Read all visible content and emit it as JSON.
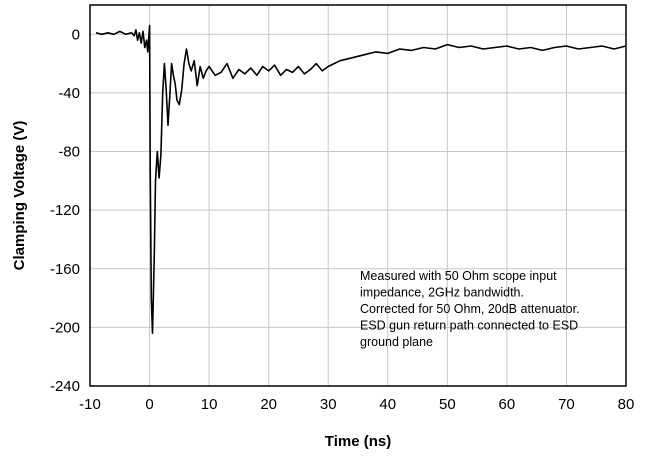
{
  "chart_data": {
    "type": "line",
    "xlabel": "Time (ns)",
    "ylabel": "Clamping Voltage (V)",
    "xlim": [
      -10,
      80
    ],
    "ylim": [
      -240,
      20
    ],
    "xticks": [
      -10,
      0,
      10,
      20,
      30,
      40,
      50,
      60,
      70,
      80
    ],
    "yticks": [
      0,
      -40,
      -80,
      -120,
      -160,
      -200,
      -240
    ],
    "grid": true,
    "annotation": [
      "Measured with 50 Ohm scope input",
      "impedance, 2GHz bandwidth.",
      "Corrected for 50 Ohm, 20dB attenuator.",
      "ESD gun return path connected to ESD",
      "ground plane"
    ],
    "series": [
      {
        "x": [
          -9,
          -8,
          -7,
          -6,
          -5,
          -4,
          -3,
          -2.6,
          -2.3,
          -2,
          -1.7,
          -1.4,
          -1.1,
          -0.8,
          -0.5,
          -0.3,
          0,
          0.1,
          0.3,
          0.5,
          0.8,
          1.0,
          1.3,
          1.6,
          1.9,
          2.2,
          2.5,
          2.8,
          3.1,
          3.4,
          3.7,
          4.0,
          4.3,
          4.6,
          5.0,
          5.4,
          5.8,
          6.2,
          6.6,
          7.0,
          7.5,
          8.0,
          8.5,
          9.0,
          9.5,
          10,
          11,
          12,
          13,
          14,
          15,
          16,
          17,
          18,
          19,
          20,
          21,
          22,
          23,
          24,
          25,
          26,
          27,
          28,
          29,
          30,
          32,
          34,
          36,
          38,
          40,
          42,
          44,
          46,
          48,
          50,
          52,
          54,
          56,
          58,
          60,
          62,
          64,
          66,
          68,
          70,
          72,
          74,
          76,
          78,
          80
        ],
        "y": [
          1,
          0,
          1,
          0,
          2,
          0,
          1,
          -1,
          3,
          -4,
          1,
          -6,
          2,
          -9,
          -4,
          -12,
          6,
          -90,
          -180,
          -204,
          -150,
          -100,
          -80,
          -98,
          -82,
          -40,
          -20,
          -38,
          -62,
          -42,
          -20,
          -28,
          -34,
          -45,
          -48,
          -38,
          -20,
          -10,
          -20,
          -25,
          -18,
          -35,
          -22,
          -30,
          -25,
          -22,
          -28,
          -26,
          -20,
          -30,
          -24,
          -27,
          -23,
          -28,
          -22,
          -25,
          -21,
          -28,
          -24,
          -26,
          -22,
          -27,
          -24,
          -20,
          -25,
          -22,
          -18,
          -16,
          -14,
          -12,
          -13,
          -10,
          -11,
          -9,
          -10,
          -7,
          -9,
          -8,
          -10,
          -9,
          -8,
          -10,
          -9,
          -11,
          -9,
          -8,
          -10,
          -9,
          -8,
          -10,
          -8
        ]
      }
    ]
  }
}
